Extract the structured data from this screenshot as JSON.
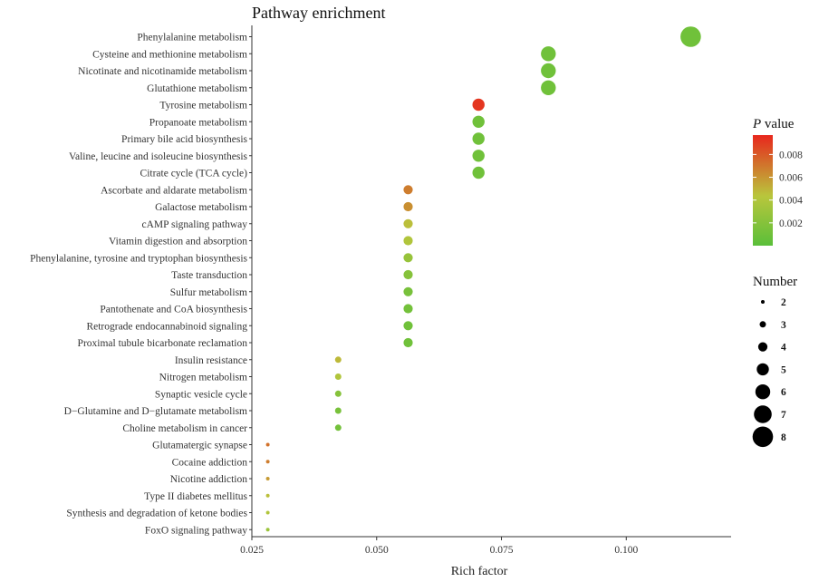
{
  "chart_data": {
    "type": "scatter",
    "title": "Pathway enrichment",
    "xlabel": "Rich factor",
    "ylabel": "",
    "xlim": [
      0.025,
      0.121
    ],
    "xticks": [
      0.025,
      0.05,
      0.075,
      0.1
    ],
    "xtick_labels": [
      "0.025",
      "0.050",
      "0.075",
      "0.100"
    ],
    "grid": false,
    "categories": [
      "Phenylalanine metabolism",
      "Cysteine and methionine metabolism",
      "Nicotinate and nicotinamide metabolism",
      "Glutathione metabolism",
      "Tyrosine metabolism",
      "Propanoate metabolism",
      "Primary bile acid biosynthesis",
      "Valine, leucine and isoleucine biosynthesis",
      "Citrate cycle (TCA cycle)",
      "Ascorbate and aldarate metabolism",
      "Galactose metabolism",
      "cAMP signaling pathway",
      "Vitamin digestion and absorption",
      "Phenylalanine, tyrosine and tryptophan biosynthesis",
      "Taste transduction",
      "Sulfur metabolism",
      "Pantothenate and CoA biosynthesis",
      "Retrograde endocannabinoid signaling",
      "Proximal tubule bicarbonate reclamation",
      "Insulin resistance",
      "Nitrogen metabolism",
      "Synaptic vesicle cycle",
      "D−Glutamine and D−glutamate metabolism",
      "Choline metabolism in cancer",
      "Glutamatergic synapse",
      "Cocaine addiction",
      "Nicotine addiction",
      "Type II diabetes mellitus",
      "Synthesis and degradation of ketone bodies",
      "FoxO signaling pathway"
    ],
    "rich_factor": [
      0.1129,
      0.0844,
      0.0844,
      0.0844,
      0.0704,
      0.0704,
      0.0704,
      0.0704,
      0.0704,
      0.0563,
      0.0563,
      0.0563,
      0.0563,
      0.0563,
      0.0563,
      0.0563,
      0.0563,
      0.0563,
      0.0563,
      0.0423,
      0.0423,
      0.0423,
      0.0423,
      0.0423,
      0.0282,
      0.0282,
      0.0282,
      0.0282,
      0.0282,
      0.0282
    ],
    "number": [
      8,
      6,
      6,
      6,
      5,
      5,
      5,
      5,
      5,
      4,
      4,
      4,
      4,
      4,
      4,
      4,
      4,
      4,
      4,
      3,
      3,
      3,
      3,
      3,
      2,
      2,
      2,
      2,
      2,
      2
    ],
    "p_value": [
      0.001,
      0.001,
      0.001,
      0.001,
      0.0092,
      0.001,
      0.001,
      0.001,
      0.001,
      0.0068,
      0.0062,
      0.0046,
      0.004,
      0.0028,
      0.002,
      0.0014,
      0.0012,
      0.001,
      0.001,
      0.0048,
      0.004,
      0.002,
      0.0014,
      0.0012,
      0.0072,
      0.0068,
      0.0058,
      0.0046,
      0.004,
      0.003
    ],
    "colorbar": {
      "title_italic": "P",
      "title_rest": " value",
      "range": [
        0.0,
        0.0097
      ],
      "ticks": [
        0.002,
        0.004,
        0.006,
        0.008
      ],
      "tick_labels": [
        "0.002",
        "0.004",
        "0.006",
        "0.008"
      ],
      "colors": {
        "low": "#5abf3a",
        "mid": "#b9c63c",
        "high": "#e8271d"
      }
    },
    "size_legend": {
      "title": "Number",
      "values": [
        2,
        3,
        4,
        5,
        6,
        7,
        8
      ],
      "labels": [
        "2",
        "3",
        "4",
        "5",
        "6",
        "7",
        "8"
      ]
    },
    "legend_position": "right"
  }
}
